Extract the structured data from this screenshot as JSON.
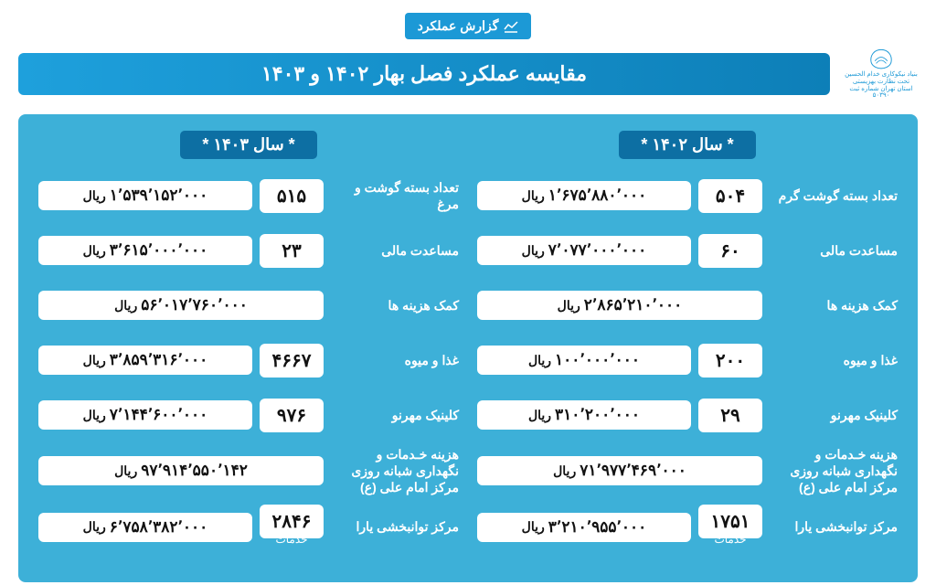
{
  "badge": "گزارش عملکرد",
  "title": "مقایسه عملکرد فصل بهار ۱۴۰۲ و ۱۴۰۳",
  "logo_text_top": "بنیاد نیکوکاری خدام الحسین",
  "logo_text_bottom": "تحت نظارت بهزیستی استان تهران  شماره ثبت ۵۰۳۹۰",
  "currency": "ریال",
  "sub_khadamat": "خدمات",
  "colors": {
    "panel_bg": "#3db0d8",
    "chip_bg": "#0d6fa3",
    "badge_bg": "#1c99d6",
    "pill_bg": "#ffffff",
    "title_grad_start": "#1ea0dc",
    "title_grad_end": "#0d7fb8"
  },
  "year1402": {
    "label": "* سال ۱۴۰۲ *",
    "rows": [
      {
        "label": "تعداد بسته گوشت گرم",
        "count": "۵۰۴",
        "amount": "۱٬۶۷۵٬۸۸۰٬۰۰۰"
      },
      {
        "label": "مساعدت مالی",
        "count": "۶۰",
        "amount": "۷٬۰۷۷٬۰۰۰٬۰۰۰"
      },
      {
        "label": "کمک هزینه ها",
        "count": "",
        "amount": "۲٬۸۶۵٬۲۱۰٬۰۰۰"
      },
      {
        "label": "غذا و میوه",
        "count": "۲۰۰",
        "amount": "۱۰۰٬۰۰۰٬۰۰۰"
      },
      {
        "label": "کلینیک مهرنو",
        "count": "۲۹",
        "amount": "۳۱۰٬۲۰۰٬۰۰۰"
      },
      {
        "label": "هزینه خـدمات و نگهداری شبانه روزی مرکز امام علی (ع)",
        "count": "",
        "amount": "۷۱٬۹۷۷٬۴۶۹٬۰۰۰"
      },
      {
        "label": "مرکز توانبخشی  یارا",
        "count": "۱۷۵۱",
        "amount": "۳٬۲۱۰٬۹۵۵٬۰۰۰",
        "sub": true
      }
    ]
  },
  "year1403": {
    "label": "* سال ۱۴۰۳ *",
    "rows": [
      {
        "label": "تعداد بسته گوشت و مرغ",
        "count": "۵۱۵",
        "amount": "۱٬۵۳۹٬۱۵۲٬۰۰۰"
      },
      {
        "label": "مساعدت مالی",
        "count": "۲۳",
        "amount": "۳٬۶۱۵٬۰۰۰٬۰۰۰"
      },
      {
        "label": "کمک هزینه ها",
        "count": "",
        "amount": "۵۶٬۰۱۷٬۷۶۰٬۰۰۰"
      },
      {
        "label": "غذا و میوه",
        "count": "۴۶۶۷",
        "amount": "۳٬۸۵۹٬۳۱۶٬۰۰۰"
      },
      {
        "label": "کلینیک مهرنو",
        "count": "۹۷۶",
        "amount": "۷٬۱۴۴٬۶۰۰٬۰۰۰"
      },
      {
        "label": "هزینه خـدمات و نگهداری شبانه روزی مرکز امام علی (ع)",
        "count": "",
        "amount": "۹۷٬۹۱۴٬۵۵۰٬۱۴۲"
      },
      {
        "label": "مرکز توانبخشی  یارا",
        "count": "۲۸۴۶",
        "amount": "۶٬۷۵۸٬۳۸۲٬۰۰۰",
        "sub": true
      }
    ]
  }
}
